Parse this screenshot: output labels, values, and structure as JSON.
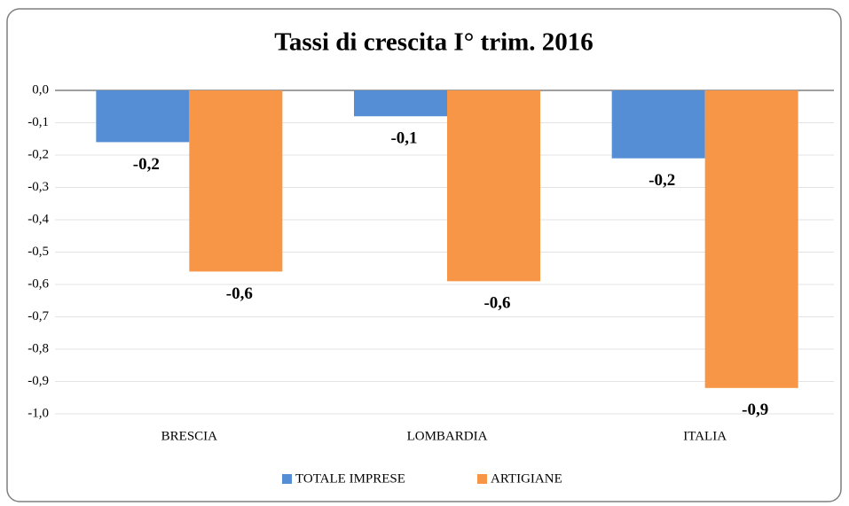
{
  "chart_data": {
    "type": "bar",
    "title": "Tassi di crescita I° trim. 2016",
    "categories": [
      "BRESCIA",
      "LOMBARDIA",
      "ITALIA"
    ],
    "series": [
      {
        "name": "TOTALE IMPRESE",
        "color": "#558ed5",
        "values": [
          -0.16,
          -0.08,
          -0.21
        ],
        "value_labels": [
          "-0,2",
          "-0,1",
          "-0,2"
        ]
      },
      {
        "name": "ARTIGIANE",
        "color": "#f79646",
        "values": [
          -0.56,
          -0.59,
          -0.92
        ],
        "value_labels": [
          "-0,6",
          "-0,6",
          "-0,9"
        ]
      }
    ],
    "ylim": [
      -1.0,
      0.0
    ],
    "yticks": [
      {
        "value": 0.0,
        "label": "0,0"
      },
      {
        "value": -0.1,
        "label": "-0,1"
      },
      {
        "value": -0.2,
        "label": "-0,2"
      },
      {
        "value": -0.3,
        "label": "-0,3"
      },
      {
        "value": -0.4,
        "label": "-0,4"
      },
      {
        "value": -0.5,
        "label": "-0,5"
      },
      {
        "value": -0.6,
        "label": "-0,6"
      },
      {
        "value": -0.7,
        "label": "-0,7"
      },
      {
        "value": -0.8,
        "label": "-0,8"
      },
      {
        "value": -0.9,
        "label": "-0,9"
      },
      {
        "value": -1.0,
        "label": "-1,0"
      }
    ],
    "grid": true,
    "legend": "bottom"
  }
}
